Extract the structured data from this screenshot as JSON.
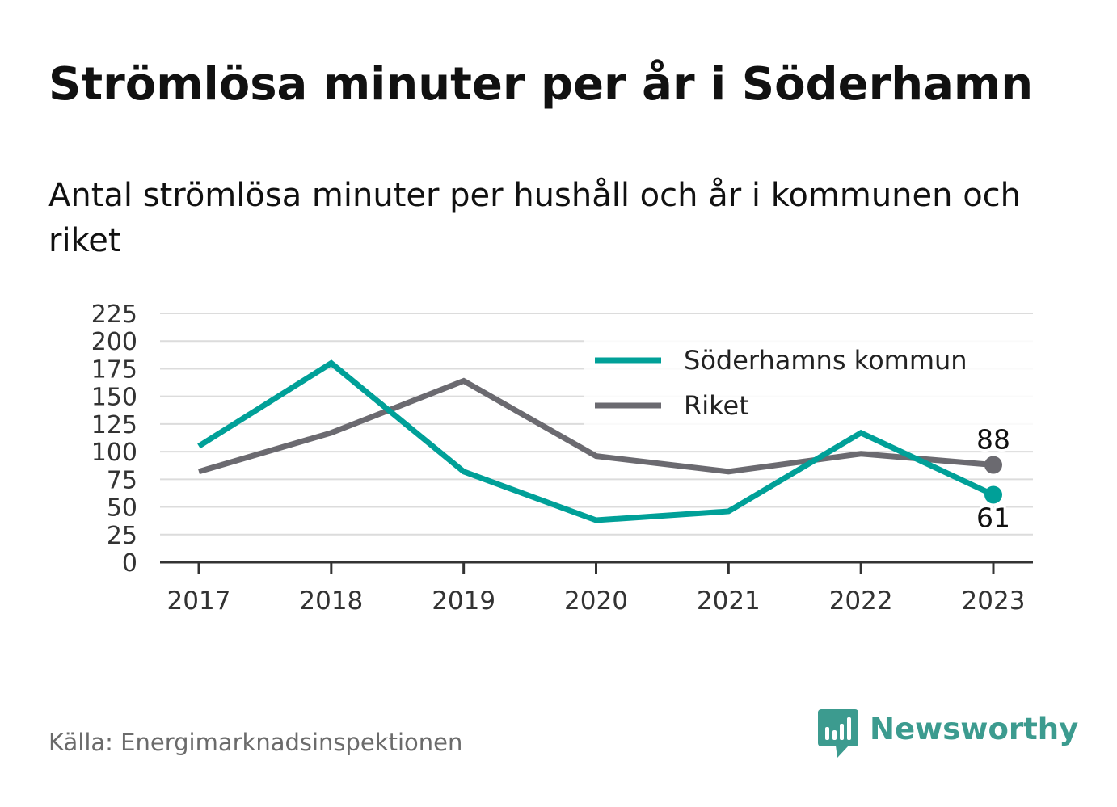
{
  "title": "Strömlösa minuter per år i Söderhamn",
  "subtitle": "Antal strömlösa minuter per hushåll och år i kommunen och riket",
  "source": "Källa: Energimarknadsinspektionen",
  "brand": {
    "name": "Newsworthy",
    "color": "#3c9b8f",
    "icon": "newsworthy-logo-icon"
  },
  "chart_data": {
    "type": "line",
    "x": [
      "2017",
      "2018",
      "2019",
      "2020",
      "2021",
      "2022",
      "2023"
    ],
    "series": [
      {
        "name": "Söderhamns kommun",
        "color": "#00a098",
        "values": [
          105,
          180,
          82,
          38,
          46,
          117,
          61
        ],
        "end_label": "61",
        "end_label_position": "below"
      },
      {
        "name": "Riket",
        "color": "#6b6a70",
        "values": [
          82,
          117,
          164,
          96,
          82,
          98,
          88
        ],
        "end_label": "88",
        "end_label_position": "above"
      }
    ],
    "y_ticks": [
      0,
      25,
      50,
      75,
      100,
      125,
      150,
      175,
      200,
      225
    ],
    "ylim": [
      0,
      225
    ],
    "grid": true,
    "legend_position": "top-right",
    "xlabel": "",
    "ylabel": ""
  }
}
